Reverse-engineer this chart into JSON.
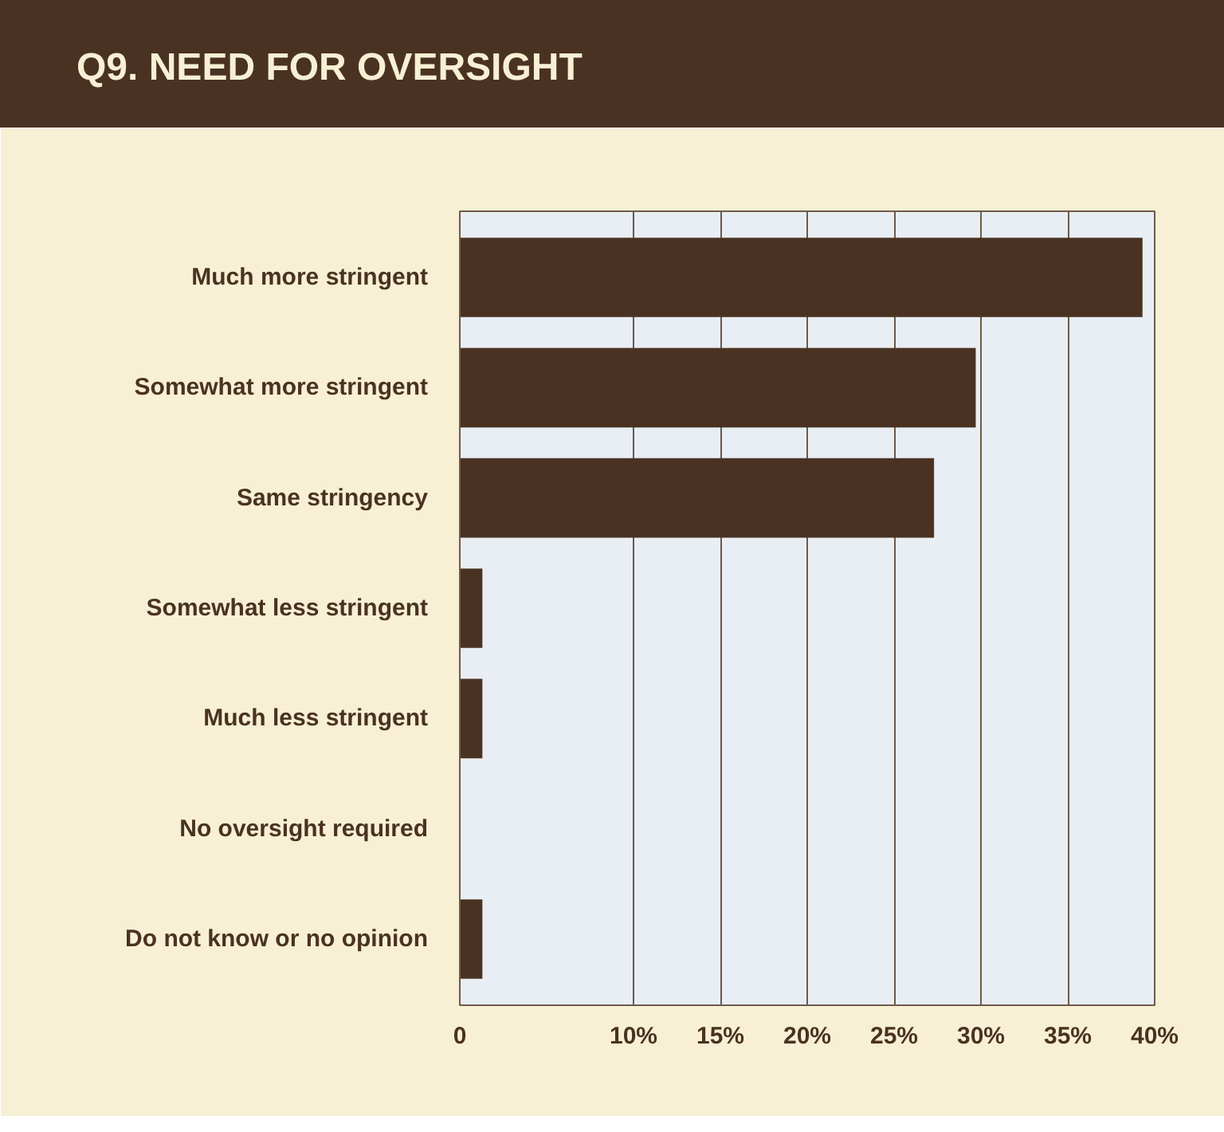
{
  "chart_data": {
    "type": "bar",
    "orientation": "horizontal",
    "title": "Q9. NEED FOR OVERSIGHT",
    "categories": [
      "Much more stringent",
      "Somewhat more stringent",
      "Same stringency",
      "Somewhat less stringent",
      "Much less stringent",
      "No oversight required",
      "Do not know or no opinion"
    ],
    "values": [
      39.3,
      29.7,
      27.3,
      1.3,
      1.3,
      0,
      1.3
    ],
    "color": "#4a3222",
    "xlim": [
      0,
      40
    ],
    "xticks": [
      0,
      {
        "value": 10,
        "label": "10%"
      },
      {
        "value": 15,
        "label": "15%"
      },
      {
        "value": 20,
        "label": "20%"
      },
      {
        "value": 25,
        "label": "25%"
      },
      {
        "value": 30,
        "label": "30%"
      },
      {
        "value": 35,
        "label": "35%"
      },
      {
        "value": 40,
        "label": "40%"
      }
    ],
    "grid": "x"
  }
}
